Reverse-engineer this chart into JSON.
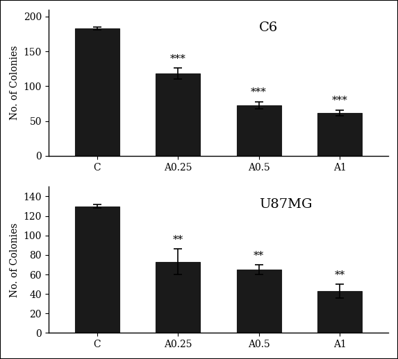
{
  "top": {
    "title": "C6",
    "categories": [
      "C",
      "A0.25",
      "A0.5",
      "A1"
    ],
    "values": [
      183,
      118,
      73,
      62
    ],
    "errors": [
      2,
      8,
      5,
      4
    ],
    "sig_labels": [
      "",
      "***",
      "***",
      "***"
    ],
    "ylabel": "No. of Colonies",
    "ylim": [
      0,
      210
    ],
    "yticks": [
      0,
      50,
      100,
      150,
      200
    ]
  },
  "bottom": {
    "title": "U87MG",
    "categories": [
      "C",
      "A0.25",
      "A0.5",
      "A1"
    ],
    "values": [
      130,
      73,
      65,
      43
    ],
    "errors": [
      2,
      13,
      5,
      7
    ],
    "sig_labels": [
      "",
      "**",
      "**",
      "**"
    ],
    "ylabel": "No. of Colonies",
    "ylim": [
      0,
      150
    ],
    "yticks": [
      0,
      20,
      40,
      60,
      80,
      100,
      120,
      140
    ]
  },
  "bar_color": "#1a1a1a",
  "bar_width": 0.55,
  "background_color": "#ffffff",
  "sig_fontsize": 11,
  "title_fontsize": 14,
  "label_fontsize": 10,
  "tick_fontsize": 10
}
